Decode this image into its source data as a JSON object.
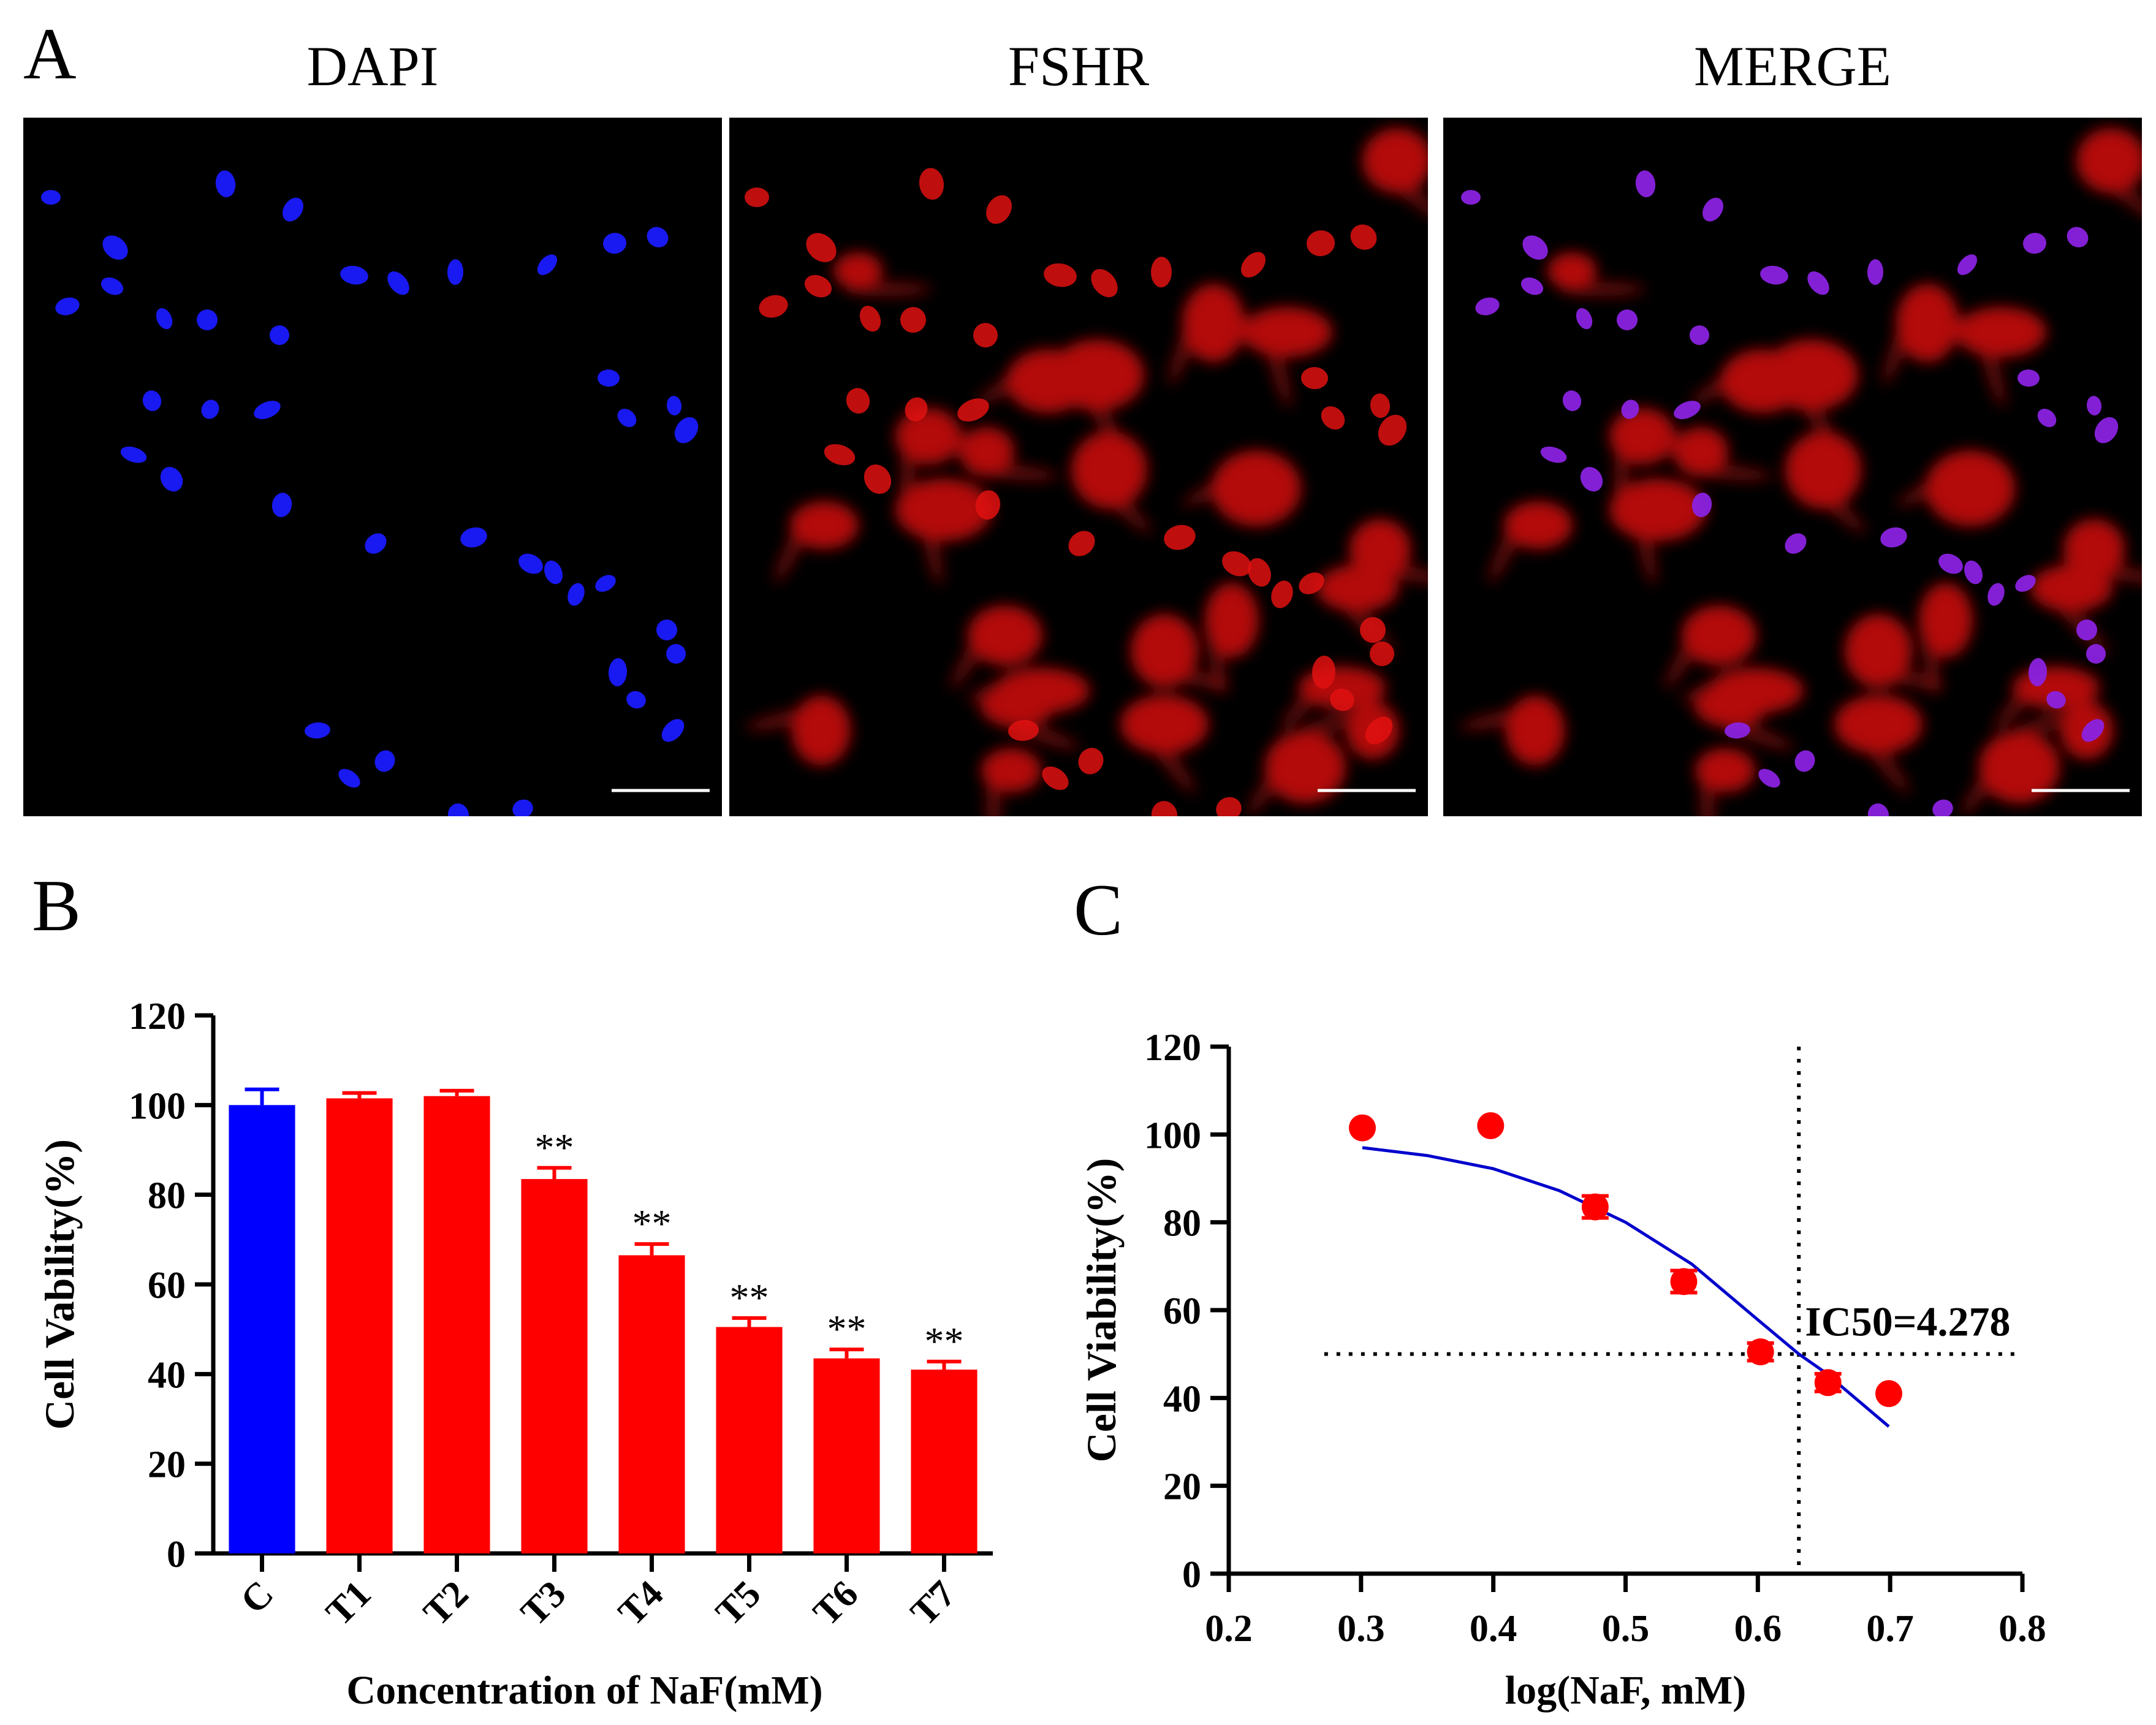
{
  "panel_a": {
    "letter": "A",
    "images": [
      {
        "title": "DAPI",
        "nucleus_color": "#1a1aff"
      },
      {
        "title": "FSHR",
        "cell_color": "#e01010"
      },
      {
        "title": "MERGE",
        "nucleus_color": "#8a22e0",
        "cell_color": "#e01010"
      }
    ]
  },
  "chart_data": [
    {
      "panel": "B",
      "type": "bar",
      "categories": [
        "C",
        "T1",
        "T2",
        "T3",
        "T4",
        "T5",
        "T6",
        "T7"
      ],
      "values": [
        100,
        101.5,
        102,
        83.5,
        66.5,
        50.5,
        43.5,
        41
      ],
      "errors": [
        3.5,
        1.2,
        1.2,
        2.5,
        2.5,
        2,
        2,
        1.8
      ],
      "colors": [
        "#0000ff",
        "#ff0000",
        "#ff0000",
        "#ff0000",
        "#ff0000",
        "#ff0000",
        "#ff0000",
        "#ff0000"
      ],
      "significance": [
        "",
        "",
        "",
        "**",
        "**",
        "**",
        "**",
        "**"
      ],
      "xlabel": "Concentration of NaF(mM)",
      "ylabel": "Cell Vability(%)",
      "ylim": [
        0,
        120
      ],
      "yticks": [
        0,
        20,
        40,
        60,
        80,
        100,
        120
      ]
    },
    {
      "panel": "C",
      "type": "scatter",
      "x": [
        0.301,
        0.398,
        0.477,
        0.544,
        0.602,
        0.653,
        0.699
      ],
      "y": [
        101.5,
        102,
        83.5,
        66.5,
        50.5,
        43.5,
        41
      ],
      "errors": [
        0,
        0,
        2.5,
        2.5,
        2,
        2,
        0
      ],
      "point_color": "#ff0000",
      "fit_curve_color": "#0000cc",
      "fit_curve": {
        "x": [
          0.301,
          0.35,
          0.4,
          0.45,
          0.5,
          0.55,
          0.6,
          0.631,
          0.65,
          0.699
        ],
        "y": [
          97,
          95.2,
          92.2,
          87.2,
          80,
          70.5,
          57.8,
          50,
          46,
          33.5
        ]
      },
      "ic50_annotation": "IC50=4.278",
      "ic50_log_x": 0.631,
      "ic50_y": 50,
      "xlabel": "log(NaF, mM)",
      "ylabel": "Cell Viability(%)",
      "xlim": [
        0.2,
        0.8
      ],
      "ylim": [
        0,
        120
      ],
      "xticks": [
        "0.2",
        "0.3",
        "0.4",
        "0.5",
        "0.6",
        "0.7",
        "0.8"
      ],
      "yticks": [
        0,
        20,
        40,
        60,
        80,
        100,
        120
      ]
    }
  ]
}
